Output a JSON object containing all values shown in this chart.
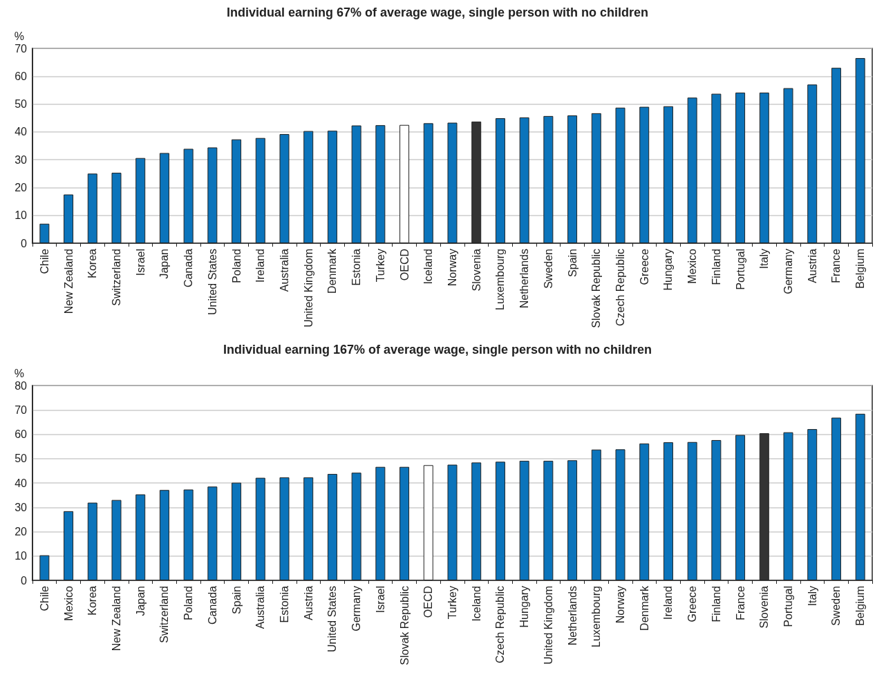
{
  "chart_data": [
    {
      "type": "bar",
      "title": "Individual earning 67% of average wage, single person with no children",
      "ylabel": "%",
      "categories": [
        "Chile",
        "New Zealand",
        "Korea",
        "Switzerland",
        "Israel",
        "Japan",
        "Canada",
        "United States",
        "Poland",
        "Ireland",
        "Australia",
        "United Kingdom",
        "Denmark",
        "Estonia",
        "Turkey",
        "OECD",
        "Iceland",
        "Norway",
        "Slovenia",
        "Luxembourg",
        "Netherlands",
        "Sweden",
        "Spain",
        "Slovak Republic",
        "Czech Republic",
        "Greece",
        "Hungary",
        "Mexico",
        "Finland",
        "Portugal",
        "Italy",
        "Germany",
        "Austria",
        "France",
        "Belgium"
      ],
      "values": [
        7,
        17.5,
        25,
        25.3,
        30.6,
        32.4,
        33.9,
        34.4,
        37.3,
        37.8,
        39.2,
        40.3,
        40.4,
        42.3,
        42.4,
        42.5,
        43.1,
        43.3,
        43.7,
        44.9,
        45.2,
        45.7,
        45.9,
        46.7,
        48.7,
        49,
        49.2,
        52.3,
        53.7,
        54.1,
        54.1,
        55.7,
        57,
        63,
        66.5
      ],
      "colors": [
        "#0b74bb",
        "#0b74bb",
        "#0b74bb",
        "#0b74bb",
        "#0b74bb",
        "#0b74bb",
        "#0b74bb",
        "#0b74bb",
        "#0b74bb",
        "#0b74bb",
        "#0b74bb",
        "#0b74bb",
        "#0b74bb",
        "#0b74bb",
        "#0b74bb",
        "#ffffff",
        "#0b74bb",
        "#0b74bb",
        "#333333",
        "#0b74bb",
        "#0b74bb",
        "#0b74bb",
        "#0b74bb",
        "#0b74bb",
        "#0b74bb",
        "#0b74bb",
        "#0b74bb",
        "#0b74bb",
        "#0b74bb",
        "#0b74bb",
        "#0b74bb",
        "#0b74bb",
        "#0b74bb",
        "#0b74bb",
        "#0b74bb"
      ],
      "ylim": [
        0,
        70
      ],
      "yticks": [
        0,
        10,
        20,
        30,
        40,
        50,
        60,
        70
      ],
      "grid": "y"
    },
    {
      "type": "bar",
      "title": "Individual earning 167% of average wage, single person with no children",
      "ylabel": "%",
      "categories": [
        "Chile",
        "Mexico",
        "Korea",
        "New Zealand",
        "Japan",
        "Switzerland",
        "Poland",
        "Canada",
        "Spain",
        "Australia",
        "Estonia",
        "Austria",
        "United States",
        "Germany",
        "Israel",
        "Slovak Republic",
        "OECD",
        "Turkey",
        "Iceland",
        "Czech Republic",
        "Hungary",
        "United Kingdom",
        "Netherlands",
        "Luxembourg",
        "Norway",
        "Denmark",
        "Ireland",
        "Greece",
        "Finland",
        "France",
        "Slovenia",
        "Portugal",
        "Italy",
        "Sweden",
        "Belgium"
      ],
      "values": [
        10.3,
        28.4,
        31.9,
        33,
        35.3,
        37.1,
        37.3,
        38.5,
        40.1,
        42.1,
        42.3,
        42.3,
        43.7,
        44.2,
        46.6,
        46.6,
        47.3,
        47.5,
        48.4,
        48.7,
        49.1,
        49.1,
        49.3,
        53.7,
        53.8,
        56.2,
        56.7,
        56.8,
        57.6,
        59.7,
        60.4,
        60.8,
        62.1,
        66.8,
        68.4
      ],
      "colors": [
        "#0b74bb",
        "#0b74bb",
        "#0b74bb",
        "#0b74bb",
        "#0b74bb",
        "#0b74bb",
        "#0b74bb",
        "#0b74bb",
        "#0b74bb",
        "#0b74bb",
        "#0b74bb",
        "#0b74bb",
        "#0b74bb",
        "#0b74bb",
        "#0b74bb",
        "#0b74bb",
        "#ffffff",
        "#0b74bb",
        "#0b74bb",
        "#0b74bb",
        "#0b74bb",
        "#0b74bb",
        "#0b74bb",
        "#0b74bb",
        "#0b74bb",
        "#0b74bb",
        "#0b74bb",
        "#0b74bb",
        "#0b74bb",
        "#0b74bb",
        "#333333",
        "#0b74bb",
        "#0b74bb",
        "#0b74bb",
        "#0b74bb"
      ],
      "ylim": [
        0,
        80
      ],
      "yticks": [
        0,
        10,
        20,
        30,
        40,
        50,
        60,
        70,
        80
      ],
      "grid": "y"
    }
  ]
}
